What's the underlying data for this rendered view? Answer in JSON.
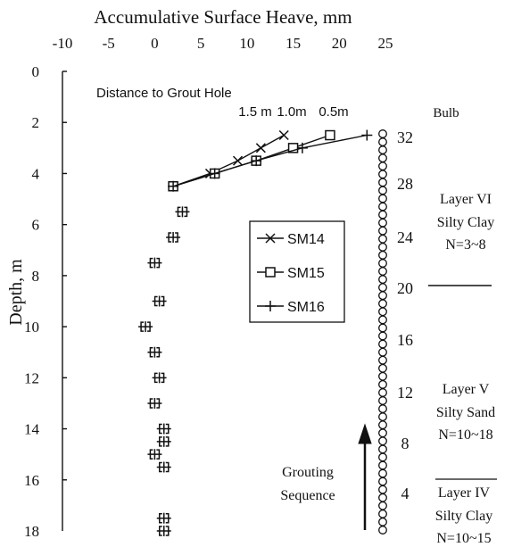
{
  "chart_data": {
    "type": "scatter",
    "title": "Accumulative Surface Heave, mm",
    "xlabel": "Accumulative Surface Heave, mm",
    "ylabel": "Depth, m",
    "xlim": [
      -10,
      25
    ],
    "ylim": [
      0,
      18
    ],
    "y_inverted": true,
    "x_ticks": [
      -10,
      -5,
      0,
      5,
      10,
      15,
      20,
      25
    ],
    "y_ticks": [
      0,
      2,
      4,
      6,
      8,
      10,
      12,
      14,
      16,
      18
    ],
    "grid": false,
    "legend_position": "middle-right",
    "series": [
      {
        "name": "SM14",
        "marker": "x",
        "connected": true,
        "points": [
          [
            2.0,
            4.5
          ],
          [
            6.0,
            4.0
          ],
          [
            9.0,
            3.5
          ],
          [
            11.5,
            3.0
          ],
          [
            14.0,
            2.5
          ]
        ]
      },
      {
        "name": "SM15",
        "marker": "square",
        "connected": true,
        "points": [
          [
            2.0,
            4.5
          ],
          [
            6.5,
            4.0
          ],
          [
            11.0,
            3.5
          ],
          [
            15.0,
            3.0
          ],
          [
            19.0,
            2.5
          ]
        ]
      },
      {
        "name": "SM16",
        "marker": "plus",
        "connected": true,
        "points": [
          [
            2.0,
            4.5
          ],
          [
            6.5,
            4.0
          ],
          [
            11.0,
            3.5
          ],
          [
            16.0,
            3.0
          ],
          [
            23.0,
            2.5
          ]
        ]
      },
      {
        "name": "",
        "marker": "bracket",
        "connected": false,
        "points": [
          [
            3.0,
            5.5
          ],
          [
            2.0,
            6.5
          ],
          [
            0.0,
            7.5
          ],
          [
            0.5,
            9.0
          ],
          [
            -1.0,
            10.0
          ],
          [
            0.0,
            11.0
          ],
          [
            0.5,
            12.0
          ],
          [
            0.0,
            13.0
          ],
          [
            1.0,
            14.0
          ],
          [
            1.0,
            14.5
          ],
          [
            0.0,
            15.0
          ],
          [
            1.0,
            15.5
          ],
          [
            1.0,
            17.5
          ],
          [
            1.0,
            18.0
          ]
        ]
      }
    ],
    "annotations": {
      "distance_title": "Distance to Grout Hole",
      "distance_labels": [
        "1.5 m",
        "1.0m",
        "0.5m"
      ],
      "bulb_title": "Bulb",
      "bulb_numbers": [
        "32",
        "28",
        "24",
        "20",
        "16",
        "12",
        "8",
        "4"
      ],
      "bulb_circle_count": 50,
      "grouting_label": [
        "Grouting",
        "Sequence"
      ],
      "layers": [
        {
          "lines": [
            "Layer VI",
            "Silty Clay",
            "N=3~8"
          ]
        },
        {
          "lines": [
            "Layer V",
            "Silty Sand",
            "N=10~18"
          ]
        },
        {
          "lines": [
            "Layer IV",
            "Silty Clay",
            "N=10~15"
          ]
        }
      ]
    }
  }
}
